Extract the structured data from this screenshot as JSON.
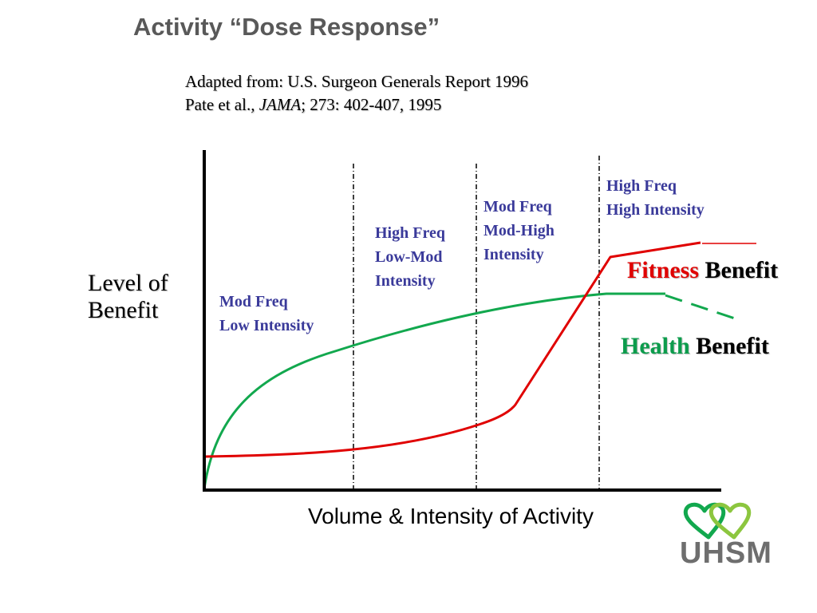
{
  "title": "Activity “Dose Response”",
  "source": {
    "line1": "Adapted from: U.S. Surgeon Generals Report 1996",
    "line2_authors": "Pate et al.",
    "line2_sep": ", ",
    "line2_journal": "JAMA",
    "line2_rest": "; 273: 402-407, 1995"
  },
  "y_axis_label": {
    "line1": "Level of",
    "line2": "Benefit"
  },
  "x_axis_label": "Volume & Intensity of Activity",
  "zones": [
    {
      "line1": "Mod Freq",
      "line2": "Low Intensity",
      "line3": ""
    },
    {
      "line1": "High Freq",
      "line2": "Low-Mod",
      "line3": "Intensity"
    },
    {
      "line1": "Mod Freq",
      "line2": "Mod-High",
      "line3": "Intensity"
    },
    {
      "line1": "High Freq",
      "line2": "High Intensity",
      "line3": ""
    }
  ],
  "legend": {
    "fitness": {
      "keyword": "Fitness",
      "rest": " Benefit",
      "color": "#e00000"
    },
    "health": {
      "keyword": "Health",
      "rest": " Benefit",
      "color": "#0c9c4c"
    }
  },
  "colors": {
    "title": "#595959",
    "zone_text": "#3a3a9a",
    "fitness_curve": "#e00000",
    "health_curve": "#12a84e",
    "logo_heart_dark": "#12a84e",
    "logo_heart_light": "#8cc63f",
    "logo_text": "#6e6e6e"
  },
  "logo": {
    "text": "UHSM",
    "icon": "double-heart-icon"
  }
}
